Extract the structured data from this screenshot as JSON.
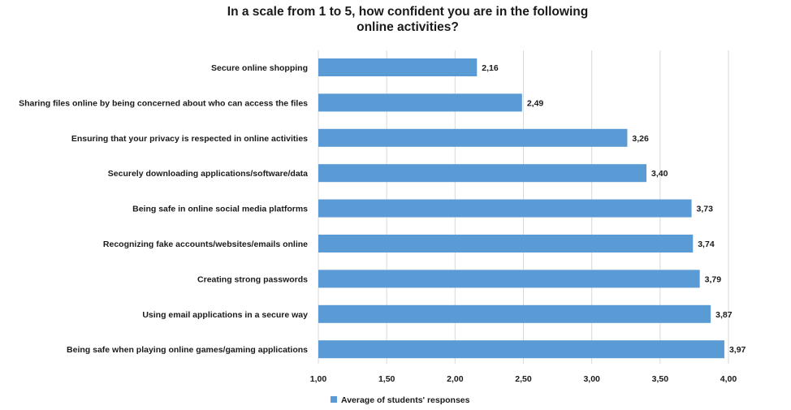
{
  "chart_data": {
    "type": "bar",
    "orientation": "horizontal",
    "title_lines": [
      "In a scale from 1 to 5, how confident you are in the following",
      "online activities?"
    ],
    "categories": [
      "Secure online shopping",
      "Sharing files online by being concerned about who can access the files",
      "Ensuring that your privacy is respected in online activities",
      "Securely downloading applications/software/data",
      "Being safe in online social media platforms",
      "Recognizing fake accounts/websites/emails online",
      "Creating strong passwords",
      "Using email applications in a secure way",
      "Being safe when playing online games/gaming applications"
    ],
    "series": [
      {
        "name": "Average of students' responses",
        "values": [
          2.16,
          2.49,
          3.26,
          3.4,
          3.73,
          3.74,
          3.79,
          3.87,
          3.97
        ],
        "value_labels": [
          "2,16",
          "2,49",
          "3,26",
          "3,40",
          "3,73",
          "3,74",
          "3,79",
          "3,87",
          "3,97"
        ]
      }
    ],
    "x_ticks": [
      1.0,
      1.5,
      2.0,
      2.5,
      3.0,
      3.5,
      4.0
    ],
    "x_tick_labels": [
      "1,00",
      "1,50",
      "2,00",
      "2,50",
      "3,00",
      "3,50",
      "4,00"
    ],
    "xlim": [
      1.0,
      4.0
    ],
    "grid": "vertical",
    "legend_position": "bottom-center",
    "bar_color": "#5b9bd5",
    "grid_color": "#d9d9d9"
  }
}
